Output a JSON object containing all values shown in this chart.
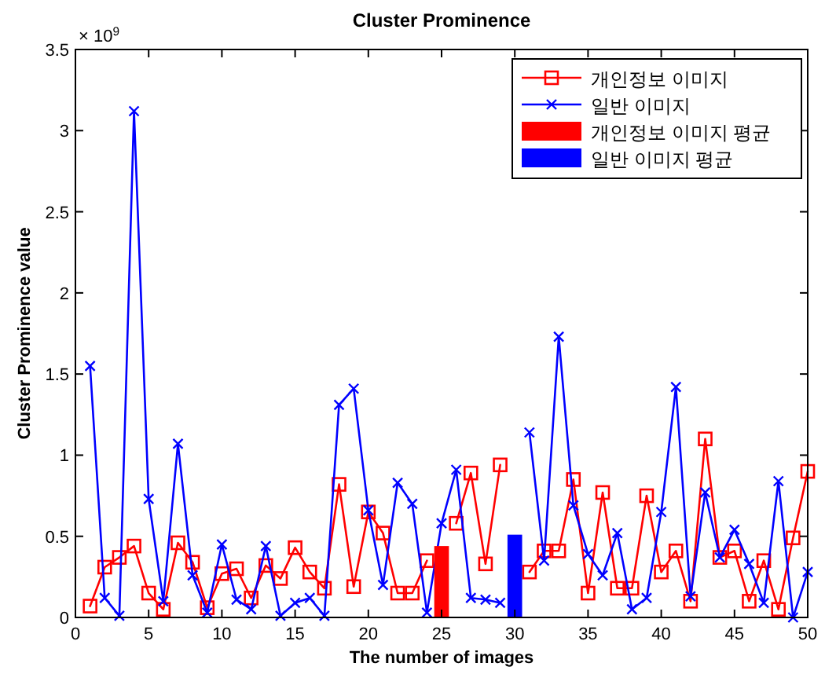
{
  "chart_data": {
    "type": "line",
    "title": "Cluster Prominence",
    "xlabel": "The number of images",
    "ylabel": "Cluster Prominence value",
    "annotations": [
      "× 10$^{9}$"
    ],
    "xlim": [
      0,
      50
    ],
    "xticks": [
      0,
      5,
      10,
      15,
      20,
      25,
      30,
      35,
      40,
      45,
      50
    ],
    "ylim": [
      0,
      3.5
    ],
    "yticks": [
      0,
      0.5,
      1,
      1.5,
      2,
      2.5,
      3,
      3.5
    ],
    "legend": "top right",
    "grid": false,
    "series": [
      {
        "name": "개인정보 이미지",
        "color": "#ff0000",
        "marker": "square",
        "x": [
          1,
          2,
          3,
          4,
          5,
          6,
          7,
          8,
          9,
          10,
          11,
          12,
          13,
          14,
          15,
          16,
          17,
          18,
          19,
          20,
          21,
          22,
          23,
          24,
          25,
          26,
          27,
          28,
          29,
          30,
          31,
          32,
          33,
          34,
          35,
          36,
          37,
          38,
          39,
          40,
          41,
          42,
          43,
          44,
          45,
          46,
          47,
          48,
          49,
          50
        ],
        "values": [
          0.07,
          0.31,
          0.37,
          0.44,
          0.15,
          0.05,
          0.46,
          0.34,
          0.06,
          0.27,
          0.3,
          0.12,
          0.32,
          0.24,
          0.43,
          0.28,
          0.18,
          0.82,
          0.19,
          0.65,
          0.52,
          0.15,
          0.15,
          0.35,
          null,
          0.58,
          0.89,
          0.33,
          0.94,
          null,
          0.28,
          0.41,
          0.41,
          0.85,
          0.15,
          0.77,
          0.18,
          0.18,
          0.75,
          0.28,
          0.41,
          0.1,
          1.1,
          0.37,
          0.41,
          0.1,
          0.35,
          0.05,
          0.49,
          0.9
        ]
      },
      {
        "name": "일반 이미지",
        "color": "#0000ff",
        "marker": "cross",
        "x": [
          1,
          2,
          3,
          4,
          5,
          6,
          7,
          8,
          9,
          10,
          11,
          12,
          13,
          14,
          15,
          16,
          17,
          18,
          19,
          20,
          21,
          22,
          23,
          24,
          25,
          26,
          27,
          28,
          29,
          30,
          31,
          32,
          33,
          34,
          35,
          36,
          37,
          38,
          39,
          40,
          41,
          42,
          43,
          44,
          45,
          46,
          47,
          48,
          49,
          50
        ],
        "values": [
          1.55,
          0.12,
          0.01,
          3.12,
          0.73,
          0.1,
          1.07,
          0.26,
          0.03,
          0.45,
          0.11,
          0.05,
          0.44,
          0.01,
          0.09,
          0.12,
          0.01,
          1.31,
          1.41,
          0.66,
          0.2,
          0.83,
          0.7,
          0.03,
          0.58,
          0.91,
          0.12,
          0.11,
          0.09,
          null,
          1.14,
          0.35,
          1.73,
          0.69,
          0.39,
          0.26,
          0.52,
          0.05,
          0.12,
          0.65,
          1.42,
          0.13,
          0.77,
          0.37,
          0.54,
          0.33,
          0.09,
          0.84,
          0.0,
          0.28
        ]
      },
      {
        "name": "개인정보 이미지 평균",
        "type": "bar",
        "color": "#ff0000",
        "x": [
          25
        ],
        "values": [
          0.44
        ]
      },
      {
        "name": "일반 이미지 평균",
        "type": "bar",
        "color": "#0000ff",
        "x": [
          30
        ],
        "values": [
          0.51
        ]
      }
    ]
  }
}
